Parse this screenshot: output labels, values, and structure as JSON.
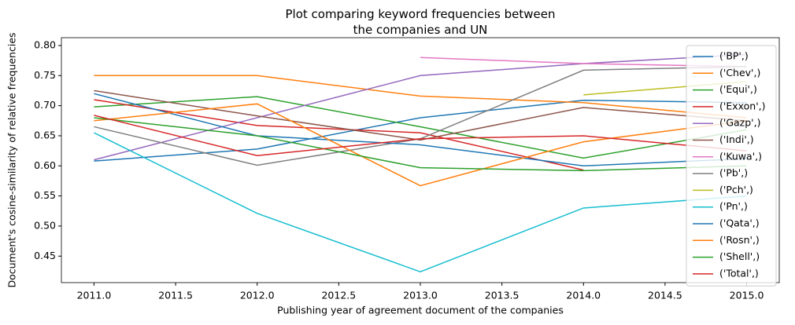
{
  "chart_data": {
    "type": "line",
    "title": "Plot comparing keyword frequencies between\nthe companies and UN",
    "x_label": "Publishing year of agreement document of the companies",
    "y_label": "Document's cosine-similarity of relative frequencies",
    "x": [
      2011,
      2012,
      2013,
      2014,
      2015
    ],
    "xlim": [
      2010.8,
      2015.2
    ],
    "xticks": [
      {
        "value": 2011,
        "label": "2011.0"
      },
      {
        "value": 2011.5,
        "label": "2011.5"
      },
      {
        "value": 2012,
        "label": "2012.0"
      },
      {
        "value": 2012.5,
        "label": "2012.5"
      },
      {
        "value": 2013,
        "label": "2013.0"
      },
      {
        "value": 2013.5,
        "label": "2013.5"
      },
      {
        "value": 2014,
        "label": "2014.0"
      },
      {
        "value": 2014.5,
        "label": "2014.5"
      },
      {
        "value": 2015,
        "label": "2015.0"
      }
    ],
    "ylim": [
      0.406,
      0.813
    ],
    "yticks": [
      0.45,
      {
        "value": 0.5,
        "label": "0.50"
      },
      0.55,
      {
        "value": 0.6,
        "label": "0.60"
      },
      0.65,
      {
        "value": 0.7,
        "label": "0.70"
      },
      0.75,
      {
        "value": 0.8,
        "label": "0.80"
      }
    ],
    "legend": "upper right",
    "series": [
      {
        "name": "('BP',)",
        "color": "#1f77b4",
        "values": [
          0.608,
          0.628,
          0.68,
          0.709,
          0.705
        ]
      },
      {
        "name": "('Chev',)",
        "color": "#ff7f0e",
        "values": [
          0.75,
          0.75,
          0.716,
          0.705,
          0.68
        ]
      },
      {
        "name": "('Equi',)",
        "color": "#2ca02c",
        "values": [
          0.698,
          0.715,
          0.665,
          0.613,
          0.66
        ]
      },
      {
        "name": "('Exxon',)",
        "color": "#d62728",
        "values": [
          0.71,
          0.667,
          0.655,
          0.593,
          null
        ]
      },
      {
        "name": "('Gazp',)",
        "color": "#9467bd",
        "values": [
          0.61,
          0.68,
          0.75,
          0.77,
          0.785
        ]
      },
      {
        "name": "('Indi',)",
        "color": "#8c564b",
        "values": [
          0.725,
          0.683,
          0.643,
          0.697,
          0.675
        ]
      },
      {
        "name": "('Kuwa',)",
        "color": "#e377c2",
        "values": [
          null,
          null,
          0.78,
          0.77,
          0.765
        ]
      },
      {
        "name": "('Pb',)",
        "color": "#7f7f7f",
        "values": [
          0.665,
          0.601,
          0.645,
          0.759,
          0.765
        ]
      },
      {
        "name": "('Pch',)",
        "color": "#bcbd22",
        "values": [
          null,
          null,
          null,
          0.718,
          0.74
        ]
      },
      {
        "name": "('Pn',)",
        "color": "#17becf",
        "values": [
          0.655,
          0.521,
          0.424,
          0.53,
          0.55
        ]
      },
      {
        "name": "('Qata',)",
        "color": "#1f77b4",
        "values": [
          0.72,
          0.65,
          0.635,
          0.6,
          0.612
        ]
      },
      {
        "name": "('Rosn',)",
        "color": "#ff7f0e",
        "values": [
          0.675,
          0.703,
          0.567,
          0.64,
          0.675
        ]
      },
      {
        "name": "('Shell',)",
        "color": "#2ca02c",
        "values": [
          0.68,
          0.65,
          0.597,
          0.592,
          0.6
        ]
      },
      {
        "name": "('Total',)",
        "color": "#d62728",
        "values": [
          0.684,
          0.617,
          0.645,
          0.65,
          0.625
        ]
      }
    ]
  }
}
